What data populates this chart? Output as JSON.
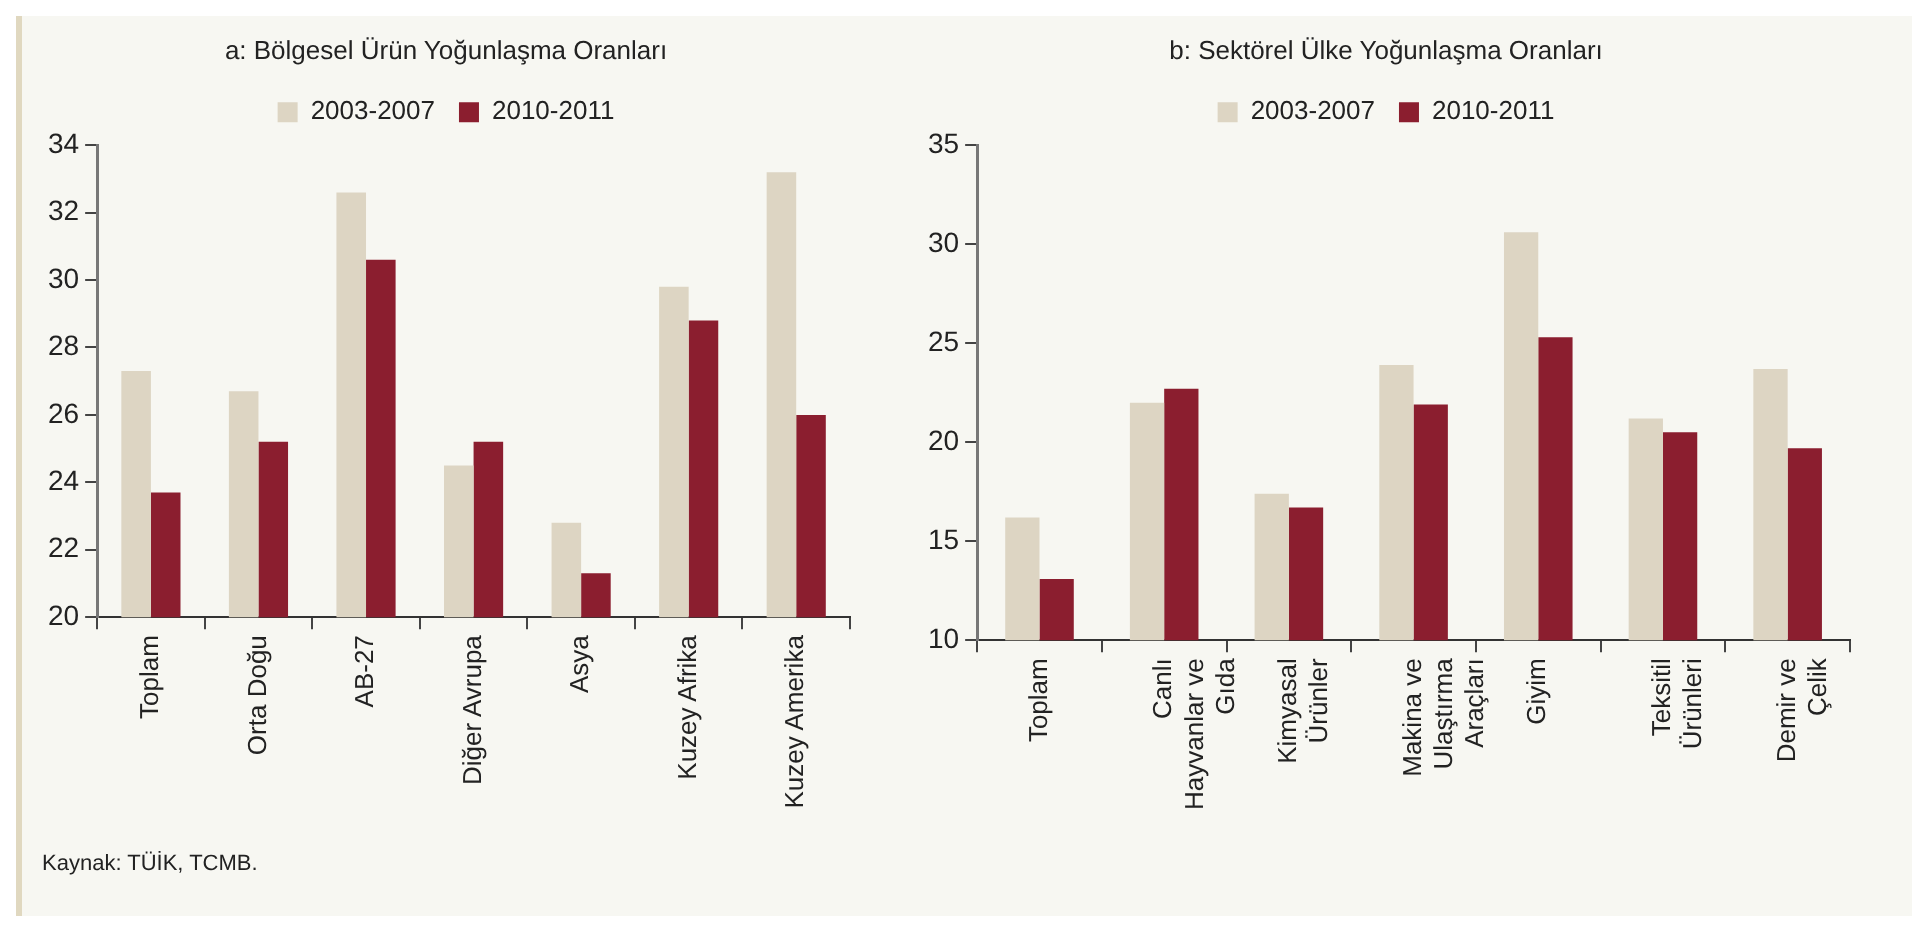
{
  "chart_data": [
    {
      "type": "bar",
      "title": "a: Bölgesel Ürün Yoğunlaşma Oranları",
      "categories": [
        "Toplam",
        "Orta Doğu",
        "AB-27",
        "Diğer Avrupa",
        "Asya",
        "Kuzey Afrika",
        "Kuzey Amerika"
      ],
      "series": [
        {
          "name": "2003-2007",
          "color": "#ddd5c3",
          "values": [
            27.3,
            26.7,
            32.6,
            24.5,
            22.8,
            29.8,
            33.2
          ]
        },
        {
          "name": "2010-2011",
          "color": "#8b1e2f",
          "values": [
            23.7,
            25.2,
            30.6,
            25.2,
            21.3,
            28.8,
            26.0
          ]
        }
      ],
      "ylim": [
        20,
        34
      ],
      "yticks": [
        20,
        22,
        24,
        26,
        28,
        30,
        32,
        34
      ],
      "legend": "top",
      "grid": false,
      "annotations": [
        "Kaynak:  TÜİK, TCMB."
      ]
    },
    {
      "type": "bar",
      "title": "b: Sektörel Ülke Yoğunlaşma Oranları",
      "categories": [
        "Toplam",
        "Canlı Hayvanlar ve Gıda",
        "Kimyasal Ürünler",
        "Makina ve Ulaştırma Araçları",
        "Giyim",
        "Teksitil Ürünleri",
        "Demir ve Çelik"
      ],
      "series": [
        {
          "name": "2003-2007",
          "color": "#ddd5c3",
          "values": [
            16.2,
            22.0,
            17.4,
            23.9,
            30.6,
            21.2,
            23.7
          ]
        },
        {
          "name": "2010-2011",
          "color": "#8b1e2f",
          "values": [
            13.1,
            22.7,
            16.7,
            21.9,
            25.3,
            20.5,
            19.7
          ]
        }
      ],
      "ylim": [
        10,
        35
      ],
      "yticks": [
        10,
        15,
        20,
        25,
        30,
        35
      ],
      "legend": "top",
      "grid": false
    }
  ]
}
